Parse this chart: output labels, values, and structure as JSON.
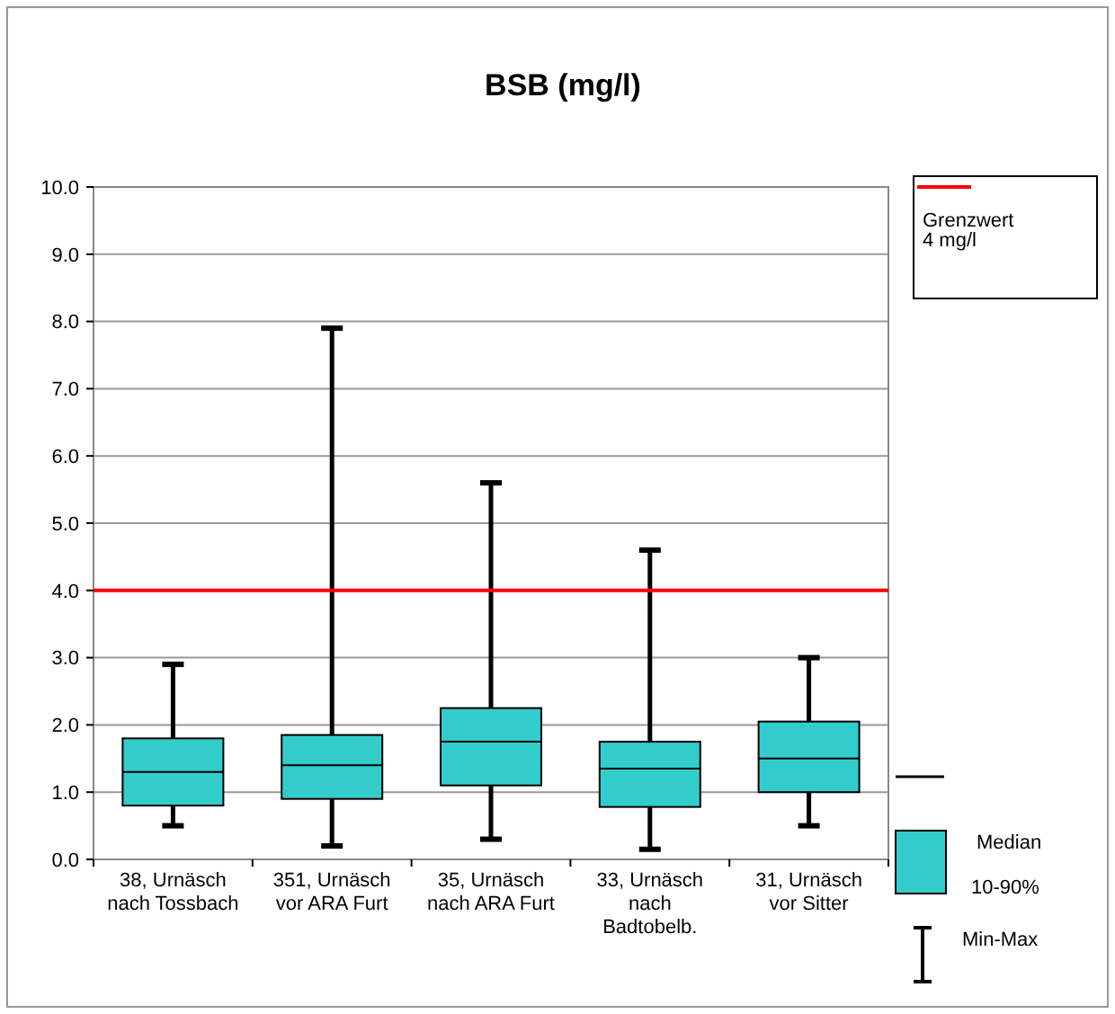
{
  "chart_data": {
    "type": "box",
    "title": "BSB (mg/l)",
    "categories": [
      "38, Urnäsch nach Tossbach",
      "351, Urnäsch vor ARA Furt",
      "35, Urnäsch nach ARA Furt",
      "33, Urnäsch nach Badtobelb.",
      "31, Urnäsch vor Sitter"
    ],
    "series": [
      {
        "color": "#33cccc",
        "boxes": [
          {
            "low": 0.5,
            "q1": 0.8,
            "median": 1.3,
            "q3": 1.8,
            "high": 2.9
          },
          {
            "low": 0.2,
            "q1": 0.9,
            "median": 1.4,
            "q3": 1.85,
            "high": 7.9
          },
          {
            "low": 0.3,
            "q1": 1.1,
            "median": 1.75,
            "q3": 2.25,
            "high": 5.6
          },
          {
            "low": 0.15,
            "q1": 0.78,
            "median": 1.35,
            "q3": 1.75,
            "high": 4.6
          },
          {
            "low": 0.5,
            "q1": 1.0,
            "median": 1.5,
            "q3": 2.05,
            "high": 3.0
          }
        ]
      }
    ],
    "ylim": [
      0,
      10
    ],
    "yticks": [
      {
        "value": 0,
        "label": "0.0"
      },
      {
        "value": 1,
        "label": "1.0"
      },
      {
        "value": 2,
        "label": "2.0"
      },
      {
        "value": 3,
        "label": "3.0"
      },
      {
        "value": 4,
        "label": "4.0"
      },
      {
        "value": 5,
        "label": "5.0"
      },
      {
        "value": 6,
        "label": "6.0"
      },
      {
        "value": 7,
        "label": "7.0"
      },
      {
        "value": 8,
        "label": "8.0"
      },
      {
        "value": 9,
        "label": "9.0"
      },
      {
        "value": 10,
        "label": "10.0"
      }
    ],
    "grid": "y",
    "ref_lines": [
      {
        "axis": "y",
        "value": 4,
        "label": "Grenzwert 4 mg/l",
        "color": "#ff0000"
      }
    ],
    "annotations": [
      "Median",
      "10-90%",
      "Min-Max"
    ]
  }
}
